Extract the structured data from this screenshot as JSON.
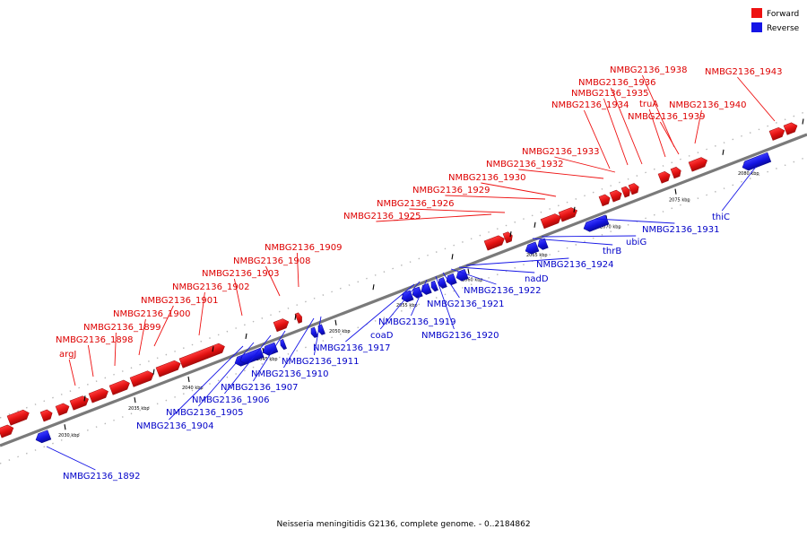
{
  "caption": "Neisseria meningitidis G2136, complete genome. - 0..2184862",
  "legend": [
    {
      "label": "Forward",
      "color": "#ee1111"
    },
    {
      "label": "Reverse",
      "color": "#1515e6"
    }
  ],
  "colors": {
    "forward": "#ee1111",
    "forward_shade": "#a20b0b",
    "reverse": "#1515e6",
    "reverse_shade": "#0c0c9c",
    "track": "#7a7a7a"
  },
  "scale_ticks": [
    "2030 kbp",
    "2035 kbp",
    "2040 kbp",
    "2045 kbp",
    "2050 kbp",
    "2055 kbp",
    "2060 kbp",
    "2065 kbp",
    "2070 kbp",
    "2075 kbp",
    "2080 kbp"
  ],
  "forward_labels": [
    "argJ",
    "NMBG2136_1898",
    "NMBG2136_1899",
    "NMBG2136_1900",
    "NMBG2136_1901",
    "NMBG2136_1902",
    "NMBG2136_1903",
    "NMBG2136_1908",
    "NMBG2136_1909",
    "NMBG2136_1925",
    "NMBG2136_1926",
    "NMBG2136_1929",
    "NMBG2136_1930",
    "NMBG2136_1932",
    "NMBG2136_1933",
    "NMBG2136_1934",
    "NMBG2136_1935",
    "NMBG2136_1936",
    "NMBG2136_1938",
    "truA",
    "NMBG2136_1939",
    "NMBG2136_1940",
    "NMBG2136_1943"
  ],
  "reverse_labels": [
    "NMBG2136_1892",
    "NMBG2136_1904",
    "NMBG2136_1905",
    "NMBG2136_1906",
    "NMBG2136_1907",
    "NMBG2136_1910",
    "NMBG2136_1911",
    "NMBG2136_1917",
    "coaD",
    "NMBG2136_1919",
    "NMBG2136_1920",
    "NMBG2136_1921",
    "NMBG2136_1922",
    "nadD",
    "NMBG2136_1924",
    "thrB",
    "ubiG",
    "NMBG2136_1931",
    "thiC"
  ]
}
